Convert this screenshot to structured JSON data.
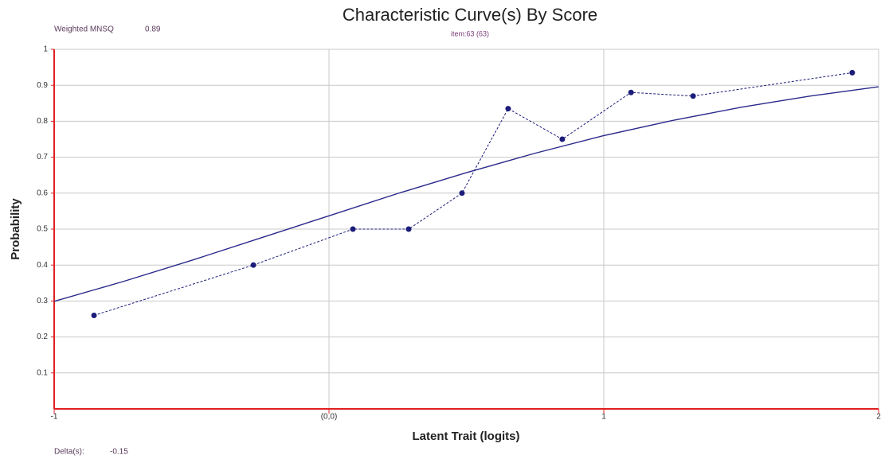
{
  "chart_data": {
    "type": "line",
    "title": "Characteristic Curve(s) By Score",
    "subtitle": "item:63 (63)",
    "annotations": [
      {
        "text": "Weighted MNSQ",
        "value": 0.89
      },
      {
        "text": "Delta(s):",
        "value": -0.15
      }
    ],
    "xlabel": "Latent Trait (logits)",
    "ylabel": "Probability",
    "xlim": [
      -1,
      2
    ],
    "ylim": [
      0,
      1
    ],
    "xticks": [
      -1,
      {
        "value": 0,
        "label": "(0,0)"
      },
      1,
      2
    ],
    "yticks": [
      0.1,
      0.2,
      0.3,
      0.4,
      0.5,
      0.6,
      0.7,
      0.8,
      0.9,
      1
    ],
    "grid": true,
    "series": [
      {
        "color": "#2a2a8c",
        "dashed": false,
        "markers": false,
        "x": [
          -1,
          -0.75,
          -0.5,
          -0.25,
          0,
          0.25,
          0.5,
          0.75,
          1,
          1.25,
          1.5,
          1.75,
          2
        ],
        "values": [
          0.299,
          0.354,
          0.413,
          0.475,
          0.537,
          0.599,
          0.657,
          0.711,
          0.76,
          0.802,
          0.839,
          0.87,
          0.896
        ]
      },
      {
        "color": "#1c1c7a",
        "dashed": true,
        "markers": true,
        "x": [
          -0.855,
          -0.275,
          0.087,
          0.29,
          0.484,
          0.652,
          0.849,
          1.099,
          1.325,
          1.904
        ],
        "values": [
          0.26,
          0.4,
          0.5,
          0.5,
          0.6,
          0.835,
          0.75,
          0.88,
          0.87,
          0.935
        ]
      }
    ]
  }
}
